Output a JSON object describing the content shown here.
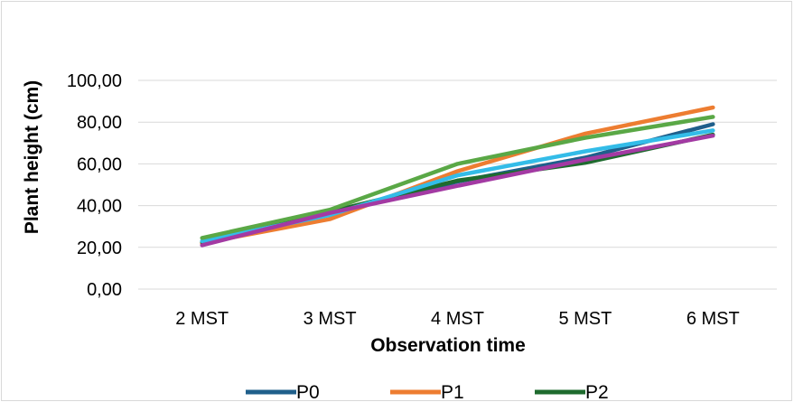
{
  "chart_data": {
    "type": "line",
    "title": "",
    "xlabel": "Observation time",
    "ylabel": "Plant height (cm)",
    "categories": [
      "2 MST",
      "3 MST",
      "4 MST",
      "5 MST",
      "6 MST"
    ],
    "ylim": [
      0,
      100
    ],
    "yticks": [
      0,
      20,
      40,
      60,
      80,
      100
    ],
    "ytick_labels": [
      "0,00",
      "20,00",
      "40,00",
      "60,00",
      "80,00",
      "100,00"
    ],
    "grid": "horizontal",
    "legend_position": "bottom",
    "series": [
      {
        "name": "P0",
        "color": "#1f5f8b",
        "values": [
          22.0,
          36.0,
          51.5,
          63.0,
          79.0
        ]
      },
      {
        "name": "P1",
        "color": "#ed7d31",
        "values": [
          22.0,
          33.5,
          56.5,
          74.5,
          87.0
        ]
      },
      {
        "name": "P2",
        "color": "#1e6b2e",
        "values": [
          22.5,
          37.0,
          52.0,
          60.5,
          74.0
        ]
      },
      {
        "name": "",
        "color": "#33bce8",
        "values": [
          23.0,
          35.5,
          54.5,
          66.0,
          76.0
        ]
      },
      {
        "name": "",
        "color": "#5aa846",
        "values": [
          24.5,
          38.0,
          60.0,
          72.5,
          82.5
        ]
      },
      {
        "name": "",
        "color": "#a33aa3",
        "values": [
          21.0,
          36.5,
          49.5,
          62.0,
          73.5
        ]
      }
    ]
  }
}
